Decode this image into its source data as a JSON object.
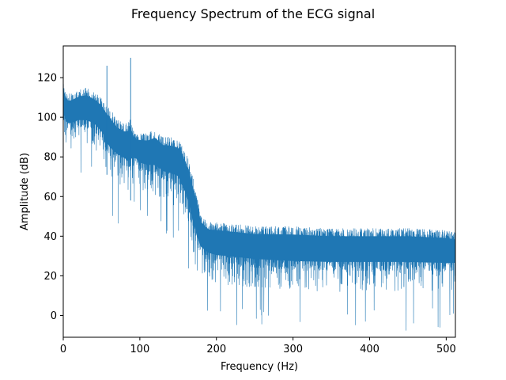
{
  "chart_data": {
    "type": "line",
    "title": "Frequency Spectrum of the ECG signal",
    "xlabel": "Frequency (Hz)",
    "ylabel": "Amplitude (dB)",
    "xlim": [
      0,
      512
    ],
    "ylim": [
      -11,
      136
    ],
    "xticks": [
      0,
      100,
      200,
      300,
      400,
      500
    ],
    "yticks": [
      0,
      20,
      40,
      60,
      80,
      100,
      120
    ],
    "grid": false,
    "legend": "none",
    "series_color": "#1f77b4",
    "envelope": {
      "x": [
        0,
        5,
        10,
        20,
        30,
        40,
        50,
        55,
        60,
        70,
        80,
        85,
        88,
        90,
        95,
        100,
        110,
        120,
        130,
        140,
        150,
        155,
        160,
        165,
        170,
        175,
        180,
        190,
        200,
        250,
        300,
        350,
        400,
        450,
        500,
        512
      ],
      "upper": [
        118,
        112,
        112,
        114,
        115,
        113,
        110,
        107,
        105,
        99,
        97,
        98,
        102,
        95,
        92,
        92,
        92,
        94,
        90,
        90,
        89,
        86,
        82,
        77,
        69,
        59,
        51,
        47,
        47,
        45,
        45,
        44,
        44,
        44,
        43,
        42
      ],
      "lower": [
        88,
        84,
        84,
        85,
        84,
        83,
        78,
        73,
        68,
        66,
        64,
        60,
        58,
        66,
        68,
        64,
        62,
        60,
        58,
        56,
        54,
        48,
        44,
        36,
        28,
        22,
        20,
        18,
        16,
        14,
        12,
        12,
        12,
        12,
        12,
        13
      ]
    },
    "peaks": [
      {
        "x": 57,
        "y": 126
      },
      {
        "x": 88,
        "y": 130
      }
    ]
  }
}
